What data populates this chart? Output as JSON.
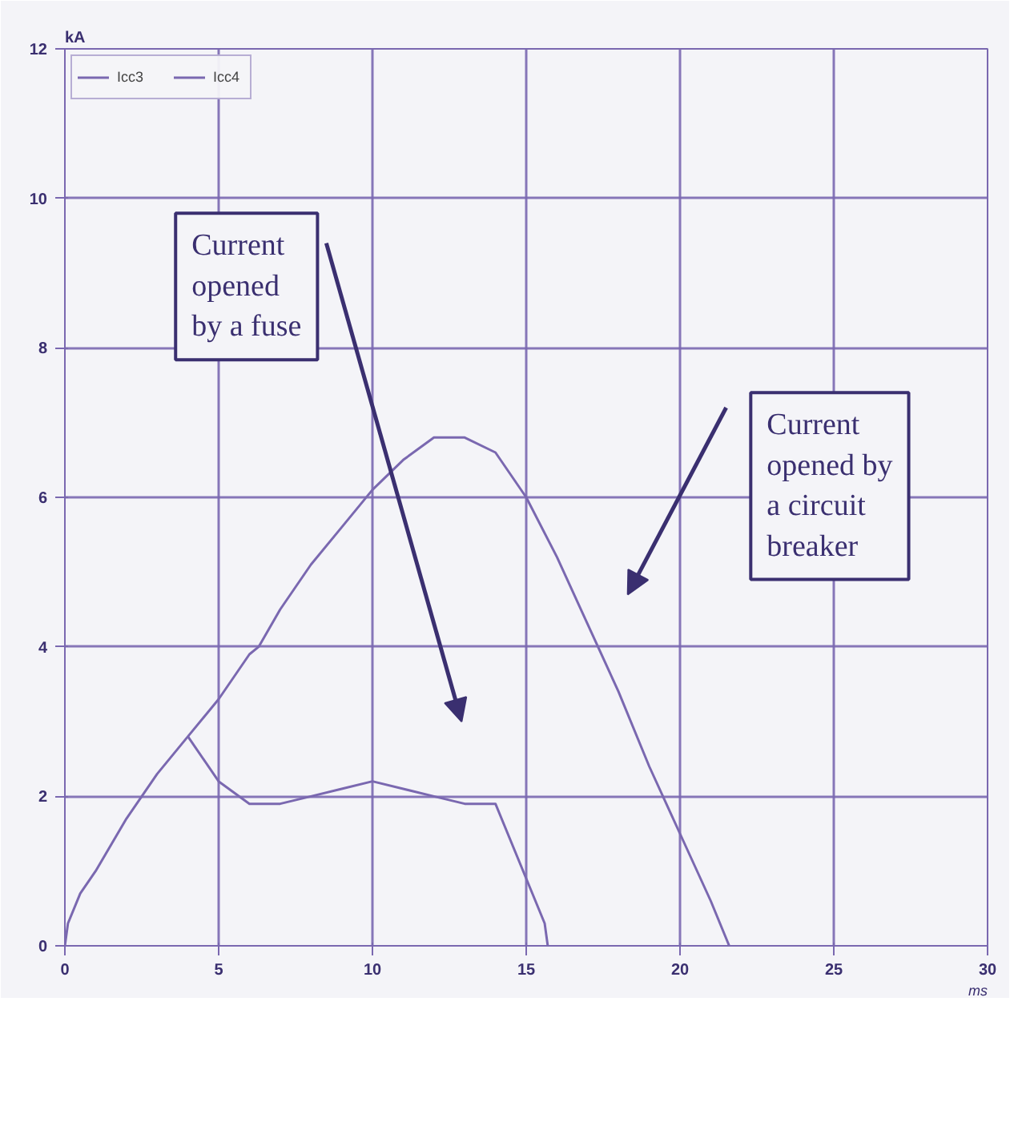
{
  "chart_data": {
    "type": "line",
    "xlabel": "ms",
    "ylabel": "kA",
    "xlim": [
      0,
      30
    ],
    "ylim": [
      0,
      12
    ],
    "xticks": [
      0,
      5,
      10,
      15,
      20,
      25,
      30
    ],
    "yticks": [
      0,
      2,
      4,
      6,
      8,
      10,
      12
    ],
    "grid": true,
    "legend": "top",
    "marker": "none",
    "line_style": "solid",
    "series": [
      {
        "name": "Icc3",
        "color": "#7a68b0",
        "x": [
          0,
          0.1,
          0.5,
          1,
          2,
          2.5,
          3,
          4,
          5,
          6,
          6.3,
          7,
          8,
          9,
          10,
          11,
          12,
          12.5,
          13,
          14,
          15,
          16,
          17,
          18,
          19,
          20,
          21,
          21.6
        ],
        "values": [
          0,
          0.3,
          0.7,
          1.0,
          1.7,
          2.0,
          2.3,
          2.8,
          3.3,
          3.9,
          4.0,
          4.5,
          5.1,
          5.6,
          6.1,
          6.5,
          6.8,
          6.8,
          6.8,
          6.6,
          6.0,
          5.2,
          4.3,
          3.4,
          2.4,
          1.5,
          0.6,
          0
        ]
      },
      {
        "name": "Icc4",
        "color": "#7a68b0",
        "x": [
          4,
          5,
          6,
          7,
          8,
          9,
          10,
          11,
          12,
          13,
          14,
          15,
          15.6,
          15.7
        ],
        "values": [
          2.8,
          2.2,
          1.9,
          1.9,
          2.0,
          2.1,
          2.2,
          2.1,
          2.0,
          1.9,
          1.9,
          0.9,
          0.3,
          0
        ]
      }
    ],
    "annotations": [
      "Current\nopened\nby a fuse",
      "Current\nopened by\na circuit\nbreaker"
    ]
  }
}
